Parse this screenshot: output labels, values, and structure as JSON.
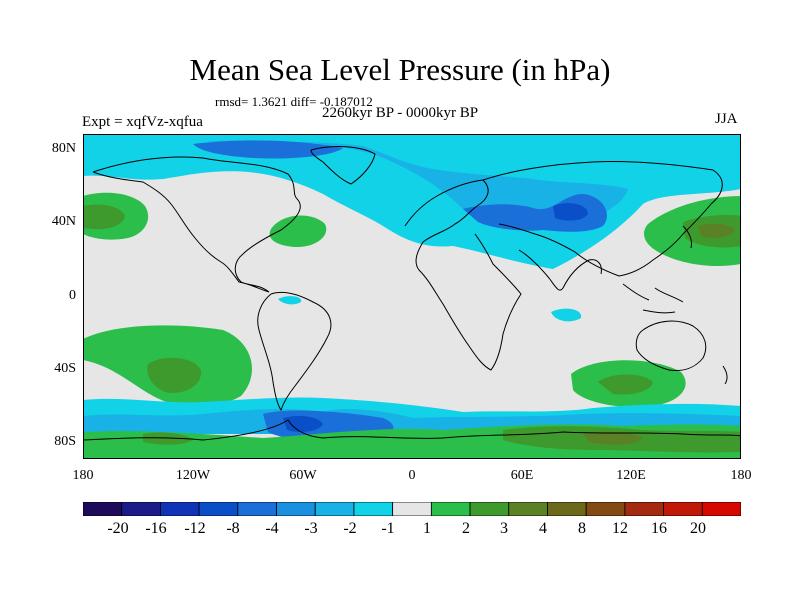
{
  "header": {
    "title": "Mean Sea Level Pressure (in hPa)",
    "rmsd_text": "rmsd= 1.3621  diff= -0.187012",
    "period": "2260kyr BP - 0000kyr BP",
    "expt": "Expt = xqfVz-xqfua",
    "season": "JJA"
  },
  "axes": {
    "lat_labels": [
      "80N",
      "40N",
      "0",
      "40S",
      "80S"
    ],
    "lon_labels": [
      "180",
      "120W",
      "60W",
      "0",
      "60E",
      "120E",
      "180"
    ]
  },
  "colorbar": {
    "labels": [
      "-20",
      "-16",
      "-12",
      "-8",
      "-4",
      "-3",
      "-2",
      "-1",
      "1",
      "2",
      "3",
      "4",
      "8",
      "12",
      "16",
      "20"
    ],
    "colors": [
      "#1e0a5a",
      "#1b1c8a",
      "#1034b8",
      "#0a4fc8",
      "#1a6fd8",
      "#1a90de",
      "#18b2e6",
      "#12d2e8",
      "#e6e6e6",
      "#2cbe4a",
      "#3f9a2e",
      "#5a8224",
      "#6c6a1a",
      "#844a14",
      "#a42a10",
      "#c21808",
      "#d60800"
    ]
  },
  "colors": {
    "background": "#e6e6e6",
    "low_light": "#12d2e8",
    "low_mid": "#18b2e6",
    "low_deep": "#1a6fd8",
    "low_dark": "#0a4fc8",
    "high_light": "#2cbe4a",
    "high_mid": "#3f9a2e",
    "high_dark": "#5a8224",
    "coast": "#000000"
  }
}
